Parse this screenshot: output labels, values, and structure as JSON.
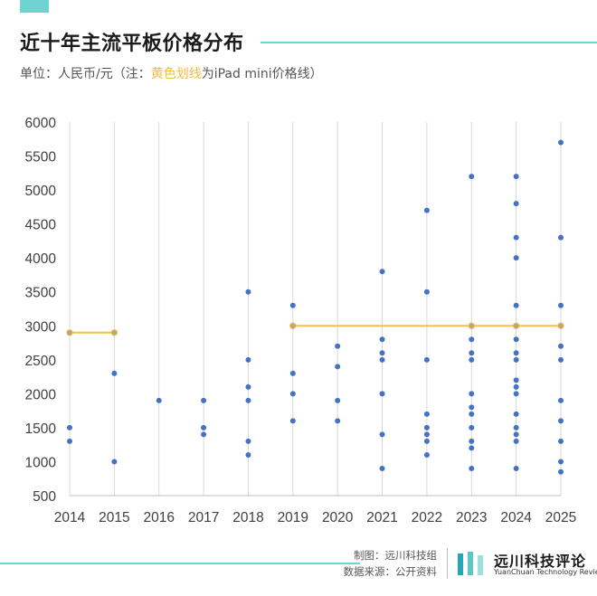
{
  "header": {
    "title": "近十年主流平板价格分布",
    "subtitle_prefix": "单位：人民币/元（注：",
    "subtitle_highlight": "黄色划线",
    "subtitle_suffix": "为iPad mini价格线）"
  },
  "colors": {
    "accent": "#6fd3d3",
    "point": "#4472c4",
    "mini_line": "#f5bf42",
    "mini_point": "#b8a487",
    "tick_text": "#404040"
  },
  "chart_data": {
    "type": "scatter",
    "title": "近十年主流平板价格分布",
    "ylabel": "单位：人民币/元",
    "x_categories": [
      "2014",
      "2015",
      "2016",
      "2017",
      "2018",
      "2019",
      "2020",
      "2021",
      "2022",
      "2023",
      "2024",
      "2025"
    ],
    "ylim": [
      500,
      6000
    ],
    "yticks": [
      "500",
      "1000",
      "1500",
      "2000",
      "2500",
      "3000",
      "3500",
      "4000",
      "4500",
      "5000",
      "5500",
      "6000"
    ],
    "grid": "vertical",
    "series": [
      {
        "points": {
          "2014": [
            1300,
            1500
          ],
          "2015": [
            1000,
            2300
          ],
          "2016": [
            1900
          ],
          "2017": [
            1400,
            1500,
            1900
          ],
          "2018": [
            1100,
            1300,
            1900,
            2100,
            2500,
            3500
          ],
          "2019": [
            1600,
            2000,
            2300,
            3300
          ],
          "2020": [
            1600,
            1900,
            2400,
            2700
          ],
          "2021": [
            900,
            1400,
            2000,
            2500,
            2600,
            2800,
            3800
          ],
          "2022": [
            1100,
            1300,
            1400,
            1500,
            1700,
            2500,
            3500,
            4700
          ],
          "2023": [
            900,
            1200,
            1300,
            1500,
            1700,
            1800,
            2000,
            2500,
            2600,
            2800,
            5200
          ],
          "2024": [
            900,
            1300,
            1400,
            1500,
            1700,
            2000,
            2100,
            2200,
            2500,
            2600,
            2800,
            3300,
            4000,
            4300,
            4800,
            5200
          ],
          "2025": [
            850,
            1000,
            1300,
            1600,
            1900,
            2500,
            2700,
            3300,
            4300,
            5700
          ]
        }
      },
      {
        "points": {
          "2014": [
            2900
          ],
          "2015": [
            2900
          ],
          "2019": [
            3000
          ],
          "2023": [
            3000
          ],
          "2024": [
            3000
          ],
          "2025": [
            3000
          ]
        }
      }
    ],
    "mini_line_segments": [
      {
        "from": "2014",
        "to": "2015",
        "value": 2900
      },
      {
        "from": "2019",
        "to": "2025",
        "value": 3000
      }
    ]
  },
  "footer": {
    "maker": "制图：远川科技组",
    "source": "数据来源：公开资料",
    "brand_cn": "远川科技评论",
    "brand_en": "YuanChuan Technology Review"
  }
}
